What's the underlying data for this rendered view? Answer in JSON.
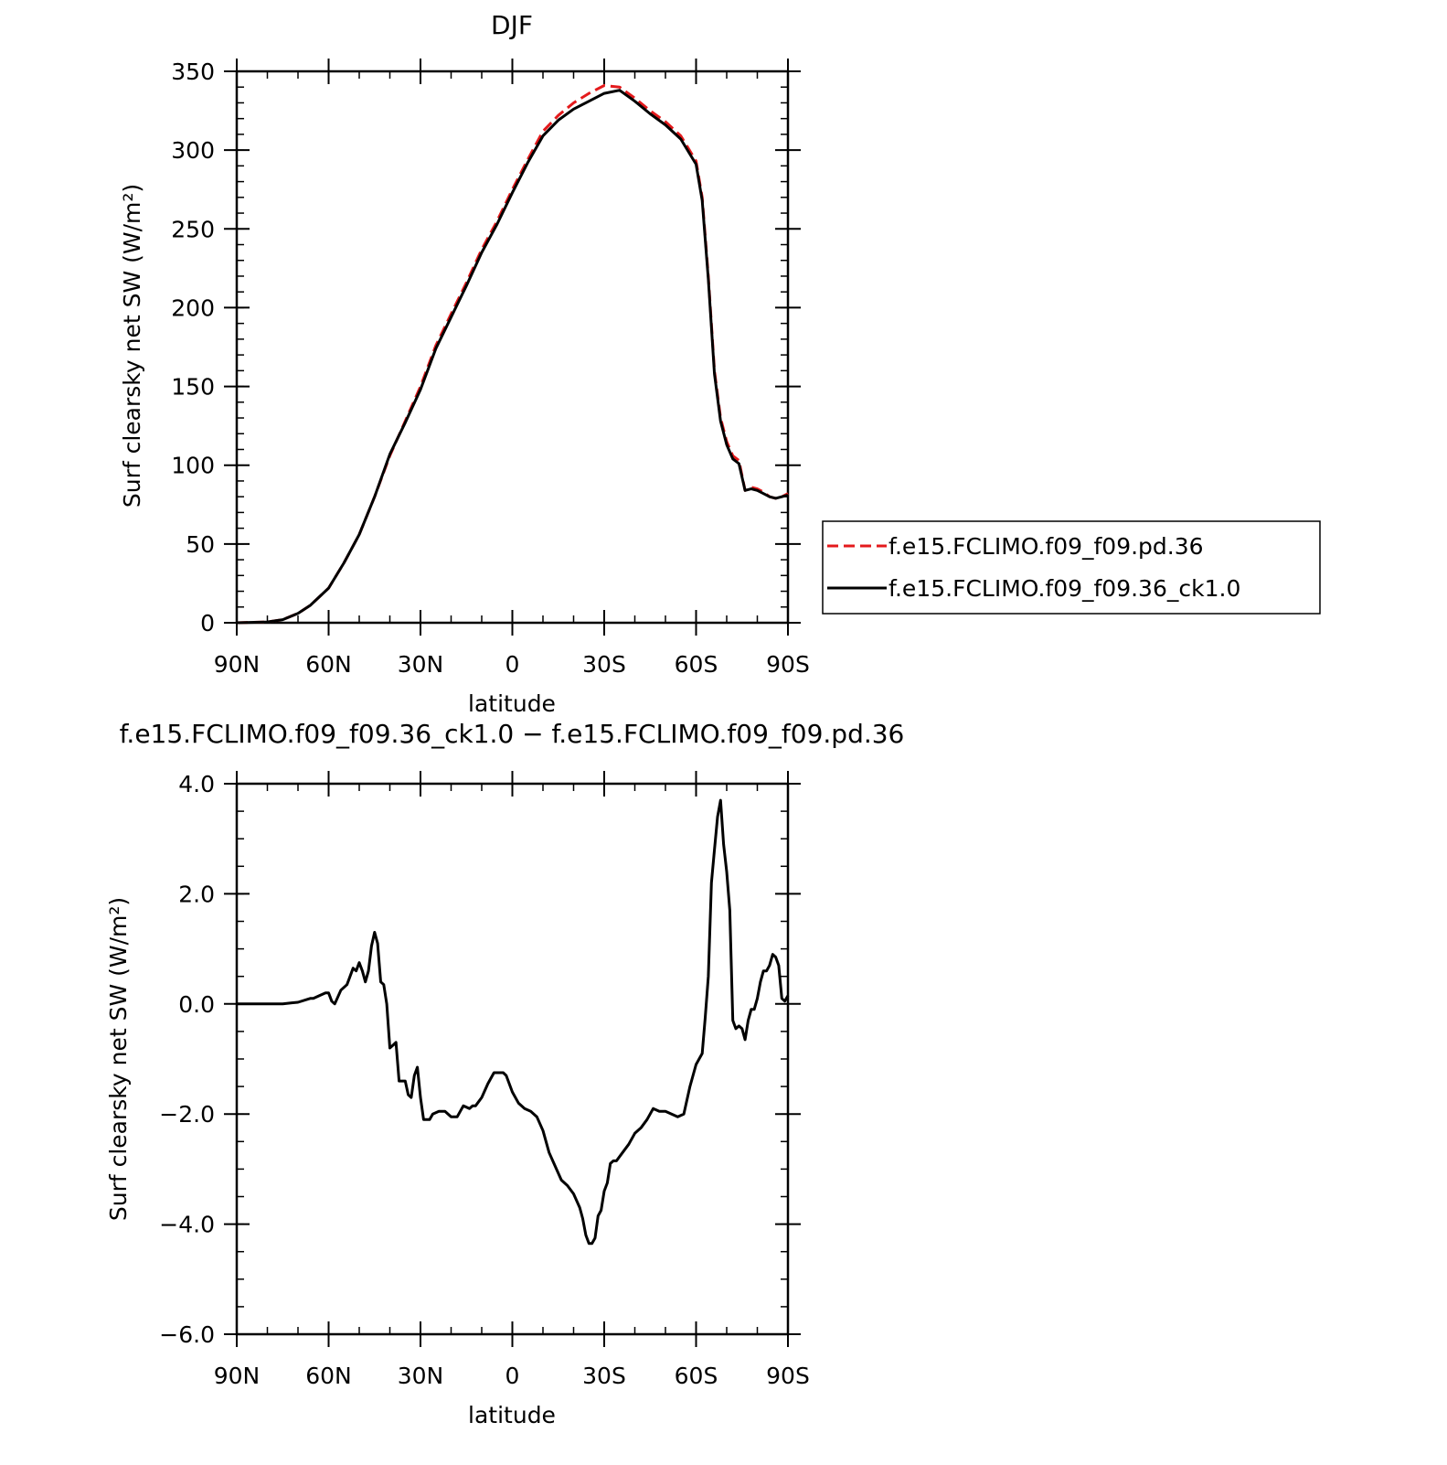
{
  "chart_data": [
    {
      "type": "line",
      "title": "DJF",
      "xlabel": "latitude",
      "ylabel": "Surf clearsky net SW (W/m²)",
      "xlim": [
        90,
        -90
      ],
      "ylim": [
        0,
        350
      ],
      "xticks": [
        90,
        60,
        30,
        0,
        -30,
        -60,
        -90
      ],
      "xtick_labels": [
        "90N",
        "60N",
        "30N",
        "0",
        "30S",
        "60S",
        "90S"
      ],
      "yticks": [
        0,
        50,
        100,
        150,
        200,
        250,
        300,
        350
      ],
      "ytick_labels": [
        "0",
        "50",
        "100",
        "150",
        "200",
        "250",
        "300",
        "350"
      ],
      "legend": "right",
      "series": [
        {
          "name": "f.e15.FCLIMO.f09_f09.pd.36",
          "color": "#e41a1c",
          "dash": "dashed",
          "x": [
            90,
            80,
            75,
            70,
            66,
            60,
            55,
            50,
            45,
            40,
            35,
            30,
            25,
            20,
            15,
            10,
            5,
            0,
            -5,
            -10,
            -15,
            -20,
            -25,
            -30,
            -35,
            -40,
            -45,
            -50,
            -55,
            -60,
            -62,
            -64,
            -66,
            -68,
            -70,
            -72,
            -74,
            -76,
            -78,
            -80,
            -82,
            -84,
            -86,
            -88,
            -90
          ],
          "y": [
            0,
            0.5,
            2,
            6,
            11,
            22,
            38,
            56,
            80,
            106,
            128,
            150,
            176,
            196,
            216,
            237,
            255,
            275,
            294,
            312,
            322,
            330,
            336,
            341,
            340,
            333,
            325,
            318,
            309,
            293,
            270,
            220,
            160,
            130,
            115,
            106,
            103,
            84,
            86,
            85,
            83,
            80,
            79,
            80,
            82
          ]
        },
        {
          "name": "f.e15.FCLIMO.f09_f09.36_ck1.0",
          "color": "#000000",
          "dash": "solid",
          "x": [
            90,
            80,
            75,
            70,
            66,
            60,
            55,
            50,
            45,
            40,
            35,
            30,
            25,
            20,
            15,
            10,
            5,
            0,
            -5,
            -10,
            -15,
            -20,
            -25,
            -30,
            -35,
            -40,
            -45,
            -50,
            -55,
            -60,
            -62,
            -64,
            -66,
            -68,
            -70,
            -72,
            -74,
            -76,
            -78,
            -80,
            -82,
            -84,
            -86,
            -88,
            -90
          ],
          "y": [
            0,
            0.5,
            2,
            6,
            11,
            22,
            38,
            56,
            80,
            107,
            127,
            148,
            174,
            194,
            214,
            235,
            253,
            273,
            292,
            309,
            319,
            326,
            331,
            336,
            338,
            331,
            323,
            316,
            307,
            291,
            268,
            218,
            158,
            128,
            113,
            104,
            101,
            84,
            85,
            84,
            82,
            80,
            79,
            80,
            81
          ]
        }
      ]
    },
    {
      "type": "line",
      "title": "f.e15.FCLIMO.f09_f09.36_ck1.0 − f.e15.FCLIMO.f09_f09.pd.36",
      "xlabel": "latitude",
      "ylabel": "Surf clearsky net SW (W/m²)",
      "xlim": [
        90,
        -90
      ],
      "ylim": [
        -6,
        4
      ],
      "xticks": [
        90,
        60,
        30,
        0,
        -30,
        -60,
        -90
      ],
      "xtick_labels": [
        "90N",
        "60N",
        "30N",
        "0",
        "30S",
        "60S",
        "90S"
      ],
      "yticks": [
        -6,
        -4,
        -2,
        0,
        2,
        4
      ],
      "ytick_labels": [
        "−6.0",
        "−4.0",
        "−2.0",
        "0.0",
        "2.0",
        "4.0"
      ],
      "series": [
        {
          "name": "",
          "color": "#000000",
          "dash": "solid",
          "x": [
            90,
            85,
            80,
            75,
            72,
            70,
            66,
            65,
            63,
            61,
            60,
            59,
            58,
            56,
            54,
            52,
            51,
            50,
            49,
            48,
            47,
            46,
            45,
            44,
            43,
            42,
            41,
            40,
            39,
            38,
            37,
            36,
            35,
            34,
            33,
            32,
            31,
            30,
            29,
            28,
            27,
            26,
            24,
            22,
            20,
            18,
            16,
            14,
            13,
            12,
            10,
            8,
            6,
            5,
            4,
            3,
            2,
            0,
            -2,
            -4,
            -6,
            -8,
            -10,
            -12,
            -14,
            -16,
            -18,
            -20,
            -22,
            -23,
            -24,
            -25,
            -26,
            -27,
            -28,
            -29,
            -30,
            -31,
            -32,
            -33,
            -34,
            -36,
            -38,
            -40,
            -42,
            -44,
            -46,
            -48,
            -50,
            -52,
            -54,
            -56,
            -58,
            -60,
            -62,
            -63,
            -64,
            -65,
            -66,
            -67,
            -68,
            -69,
            -70,
            -71,
            -72,
            -73,
            -74,
            -75,
            -76,
            -77,
            -78,
            -79,
            -80,
            -81,
            -82,
            -83,
            -84,
            -85,
            -86,
            -87,
            -88,
            -89,
            -90
          ],
          "y": [
            0,
            0,
            0,
            0,
            0.02,
            0.03,
            0.1,
            0.1,
            0.15,
            0.2,
            0.2,
            0.05,
            0,
            0.25,
            0.35,
            0.65,
            0.6,
            0.75,
            0.6,
            0.4,
            0.6,
            1.05,
            1.3,
            1.1,
            0.4,
            0.35,
            0,
            -0.8,
            -0.75,
            -0.7,
            -1.4,
            -1.4,
            -1.4,
            -1.65,
            -1.7,
            -1.3,
            -1.15,
            -1.7,
            -2.1,
            -2.1,
            -2.1,
            -2.0,
            -1.95,
            -1.95,
            -2.05,
            -2.05,
            -1.85,
            -1.9,
            -1.85,
            -1.85,
            -1.7,
            -1.45,
            -1.25,
            -1.25,
            -1.25,
            -1.25,
            -1.3,
            -1.6,
            -1.8,
            -1.9,
            -1.95,
            -2.05,
            -2.3,
            -2.7,
            -2.95,
            -3.2,
            -3.3,
            -3.45,
            -3.7,
            -3.9,
            -4.2,
            -4.35,
            -4.35,
            -4.25,
            -3.85,
            -3.75,
            -3.4,
            -3.25,
            -2.9,
            -2.85,
            -2.85,
            -2.7,
            -2.55,
            -2.35,
            -2.25,
            -2.1,
            -1.9,
            -1.95,
            -1.95,
            -2.0,
            -2.05,
            -2.0,
            -1.5,
            -1.1,
            -0.9,
            -0.25,
            0.5,
            2.2,
            2.8,
            3.4,
            3.7,
            2.9,
            2.4,
            1.7,
            -0.3,
            -0.45,
            -0.4,
            -0.45,
            -0.65,
            -0.3,
            -0.1,
            -0.1,
            0.1,
            0.4,
            0.6,
            0.6,
            0.7,
            0.9,
            0.85,
            0.7,
            0.1,
            0.05,
            0.15
          ]
        }
      ]
    }
  ]
}
